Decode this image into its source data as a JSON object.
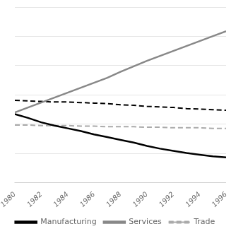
{
  "chart_data": {
    "type": "line",
    "x": [
      1980,
      1981,
      1982,
      1983,
      1984,
      1985,
      1986,
      1987,
      1988,
      1989,
      1990,
      1991,
      1992,
      1993,
      1994,
      1995,
      1996
    ],
    "series": [
      {
        "name": "Manufacturing",
        "color": "#000000",
        "line_style": "solid",
        "values": [
          0.225,
          0.218,
          0.21,
          0.204,
          0.199,
          0.194,
          0.188,
          0.183,
          0.178,
          0.173,
          0.167,
          0.162,
          0.158,
          0.154,
          0.151,
          0.148,
          0.146
        ]
      },
      {
        "name": "Services",
        "color": "#888888",
        "line_style": "solid",
        "values": [
          0.228,
          0.237,
          0.246,
          0.255,
          0.264,
          0.273,
          0.282,
          0.291,
          0.302,
          0.312,
          0.322,
          0.331,
          0.34,
          0.349,
          0.358,
          0.367,
          0.376
        ]
      },
      {
        "name": "Trade",
        "color": "#aaaaaa",
        "line_style": "dashed",
        "values": [
          0.205,
          0.205,
          0.204,
          0.204,
          0.204,
          0.203,
          0.203,
          0.202,
          0.202,
          0.202,
          0.201,
          0.201,
          0.2,
          0.2,
          0.2,
          0.199,
          0.199
        ]
      },
      {
        "color": "#000000",
        "line_style": "dashed",
        "values": [
          0.25,
          0.249,
          0.248,
          0.247,
          0.247,
          0.246,
          0.245,
          0.244,
          0.242,
          0.241,
          0.239,
          0.238,
          0.237,
          0.235,
          0.234,
          0.233,
          0.232
        ]
      }
    ],
    "xlim": [
      1980,
      1996
    ],
    "xticks": [
      1980,
      1982,
      1984,
      1986,
      1988,
      1990,
      1992,
      1994,
      1996
    ],
    "ylim": [
      0.1,
      0.42
    ],
    "yticks": [
      0.1,
      0.15333333333333335,
      0.20666666666666667,
      0.26,
      0.31333333333333335,
      0.3666666666666667,
      0.42
    ],
    "grid": true,
    "tick_labels": "x",
    "legend": "bottom"
  }
}
